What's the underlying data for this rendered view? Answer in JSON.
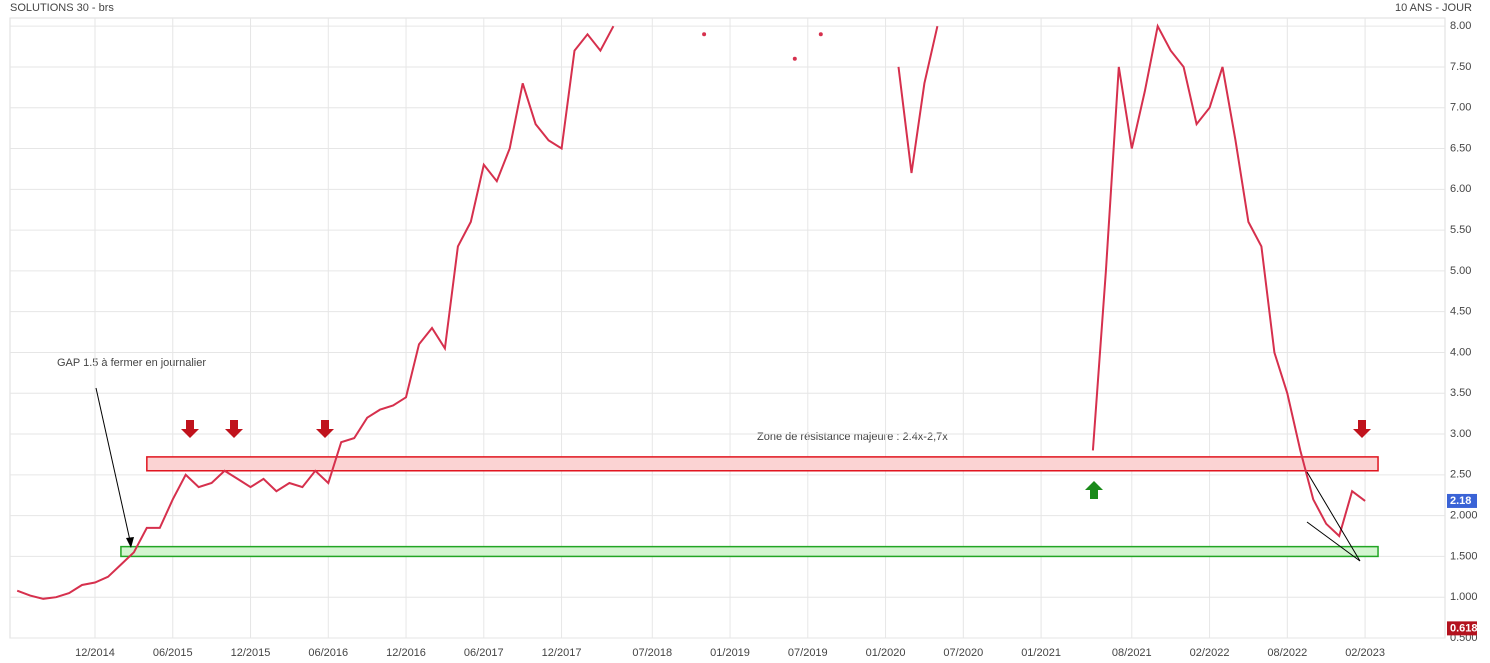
{
  "chart_data": {
    "type": "line",
    "title": "SOLUTIONS 30 - brs",
    "subtitle": "10 ANS - JOUR",
    "color": "#d6304d",
    "x": [
      "06/2014",
      "07/2014",
      "08/2014",
      "09/2014",
      "10/2014",
      "11/2014",
      "12/2014",
      "01/2015",
      "02/2015",
      "03/2015",
      "04/2015",
      "05/2015",
      "06/2015",
      "07/2015",
      "08/2015",
      "09/2015",
      "10/2015",
      "11/2015",
      "12/2015",
      "01/2016",
      "02/2016",
      "03/2016",
      "04/2016",
      "05/2016",
      "06/2016",
      "07/2016",
      "08/2016",
      "09/2016",
      "10/2016",
      "11/2016",
      "12/2016",
      "01/2017",
      "02/2017",
      "03/2017",
      "04/2017",
      "05/2017",
      "06/2017",
      "07/2017",
      "08/2017",
      "09/2017",
      "10/2017",
      "11/2017",
      "12/2017",
      "01/2018",
      "02/2018",
      "03/2018",
      "04/2018",
      "05/2018",
      "06/2018",
      "07/2018",
      "08/2018",
      "09/2018",
      "10/2018",
      "11/2018",
      "12/2018",
      "01/2019",
      "02/2019",
      "03/2019",
      "04/2019",
      "05/2019",
      "06/2019",
      "07/2019",
      "08/2019",
      "09/2019",
      "10/2019",
      "11/2019",
      "12/2019",
      "01/2020",
      "02/2020",
      "03/2020",
      "04/2020",
      "05/2020",
      "06/2020",
      "07/2020",
      "08/2020",
      "09/2020",
      "10/2020",
      "11/2020",
      "12/2020",
      "01/2021",
      "02/2021",
      "03/2021",
      "04/2021",
      "05/2021",
      "06/2021",
      "07/2021",
      "08/2021",
      "09/2021",
      "10/2021",
      "11/2021",
      "12/2021",
      "01/2022",
      "02/2022",
      "03/2022",
      "04/2022",
      "05/2022",
      "06/2022",
      "07/2022",
      "08/2022",
      "09/2022",
      "10/2022",
      "11/2022",
      "12/2022",
      "01/2023",
      "02/2023"
    ],
    "values": [
      1.08,
      1.02,
      0.98,
      1.0,
      1.05,
      1.15,
      1.18,
      1.25,
      1.4,
      1.55,
      1.85,
      1.85,
      2.2,
      2.5,
      2.35,
      2.4,
      2.55,
      2.45,
      2.35,
      2.45,
      2.3,
      2.4,
      2.35,
      2.55,
      2.4,
      2.9,
      2.95,
      3.2,
      3.3,
      3.35,
      3.45,
      4.1,
      4.3,
      4.05,
      5.3,
      5.6,
      6.3,
      6.1,
      6.5,
      7.3,
      6.8,
      6.6,
      6.5,
      7.7,
      7.9,
      7.7,
      8.0,
      null,
      null,
      null,
      null,
      null,
      null,
      7.9,
      null,
      null,
      null,
      null,
      null,
      null,
      7.6,
      null,
      7.9,
      null,
      null,
      null,
      null,
      null,
      7.5,
      6.2,
      7.3,
      8.0,
      null,
      null,
      null,
      null,
      null,
      null,
      null,
      null,
      null,
      null,
      null,
      2.8,
      5.0,
      7.5,
      6.5,
      7.2,
      8.0,
      7.7,
      7.5,
      6.8,
      7.0,
      7.5,
      6.6,
      5.6,
      5.3,
      4.0,
      3.5,
      2.8,
      2.2,
      1.9,
      1.75,
      2.3,
      2.18
    ],
    "xticks": [
      "12/2014",
      "06/2015",
      "12/2015",
      "06/2016",
      "12/2016",
      "06/2017",
      "12/2017",
      "07/2018",
      "01/2019",
      "07/2019",
      "01/2020",
      "07/2020",
      "01/2021",
      "08/2021",
      "02/2022",
      "08/2022",
      "02/2023"
    ],
    "ylim": [
      0.5,
      8.1
    ],
    "yticks": [
      {
        "value": 0.5,
        "label": "0.500"
      },
      {
        "value": 1,
        "label": "1.000"
      },
      {
        "value": 1.5,
        "label": "1.500"
      },
      {
        "value": 2,
        "label": "2.000"
      },
      {
        "value": 2.5,
        "label": "2.50"
      },
      {
        "value": 3,
        "label": "3.00"
      },
      {
        "value": 3.5,
        "label": "3.50"
      },
      {
        "value": 4,
        "label": "4.00"
      },
      {
        "value": 4.5,
        "label": "4.50"
      },
      {
        "value": 5,
        "label": "5.00"
      },
      {
        "value": 5.5,
        "label": "5.50"
      },
      {
        "value": 6,
        "label": "6.00"
      },
      {
        "value": 6.5,
        "label": "6.50"
      },
      {
        "value": 7,
        "label": "7.00"
      },
      {
        "value": 7.5,
        "label": "7.50"
      },
      {
        "value": 8,
        "label": "8.00"
      }
    ],
    "grid": true,
    "price_markers": [
      {
        "value": 2.18,
        "label": "2.18",
        "color": "#3a63d6"
      },
      {
        "value": 0.618,
        "label": "0.618",
        "color": "#b3121e"
      }
    ],
    "bands": [
      {
        "ylim": [
          2.55,
          2.72
        ],
        "x": [
          "04/2015",
          "03/2023"
        ],
        "color": "#e0141e",
        "fill": "#fbd3d3"
      },
      {
        "ylim": [
          1.5,
          1.62
        ],
        "x": [
          "02/2015",
          "03/2023"
        ],
        "color": "#22a524",
        "fill": "#d3f5d0"
      }
    ],
    "annotations": [
      "Zone de résistance majeure : 2.4x-2,7x",
      "GAP 1.5 à fermer en journalier"
    ]
  }
}
